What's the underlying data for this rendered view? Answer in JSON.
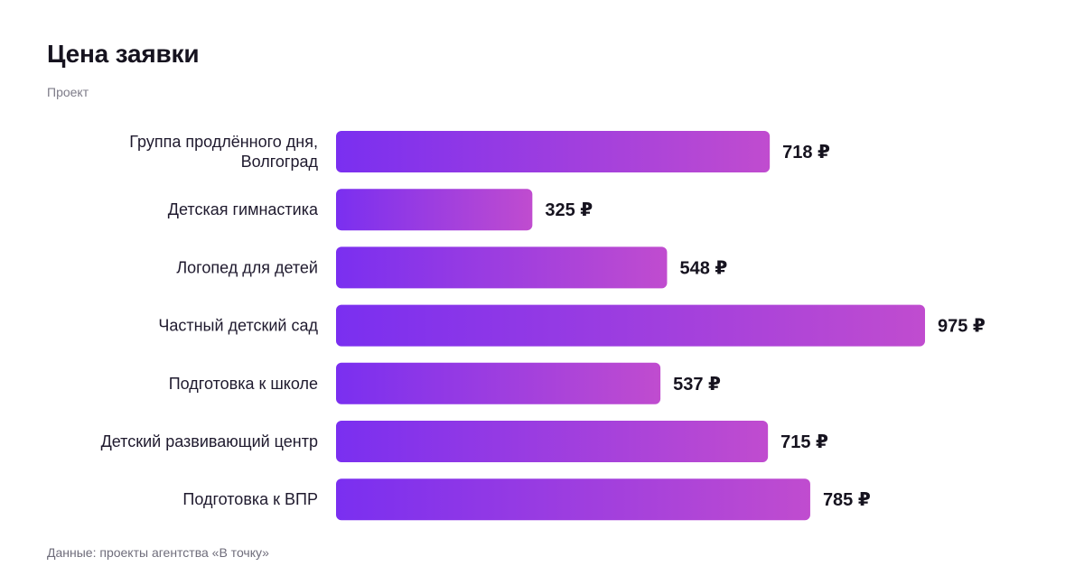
{
  "header": {
    "title": "Цена заявки",
    "subtitle": "Проект"
  },
  "footer": {
    "source": "Данные: проекты агентства «В точку»"
  },
  "colors": {
    "bar_start": "#7a2ff0",
    "bar_end": "#c04ccf"
  },
  "chart_data": {
    "type": "bar",
    "orientation": "horizontal",
    "categories": [
      [
        "Группа продлённого дня,",
        "Волгоград"
      ],
      [
        "Детская гимнастика"
      ],
      [
        "Логопед для детей"
      ],
      [
        "Частный детский сад"
      ],
      [
        "Подготовка к школе"
      ],
      [
        "Детский развивающий центр"
      ],
      [
        "Подготовка к ВПР"
      ]
    ],
    "values": [
      718,
      325,
      548,
      975,
      537,
      715,
      785
    ],
    "value_labels": [
      "718 ₽",
      "325 ₽",
      "548 ₽",
      "975 ₽",
      "537 ₽",
      "715 ₽",
      "785 ₽"
    ],
    "unit": "₽",
    "xlim": [
      0,
      975
    ],
    "grid": false,
    "legend": "none"
  }
}
